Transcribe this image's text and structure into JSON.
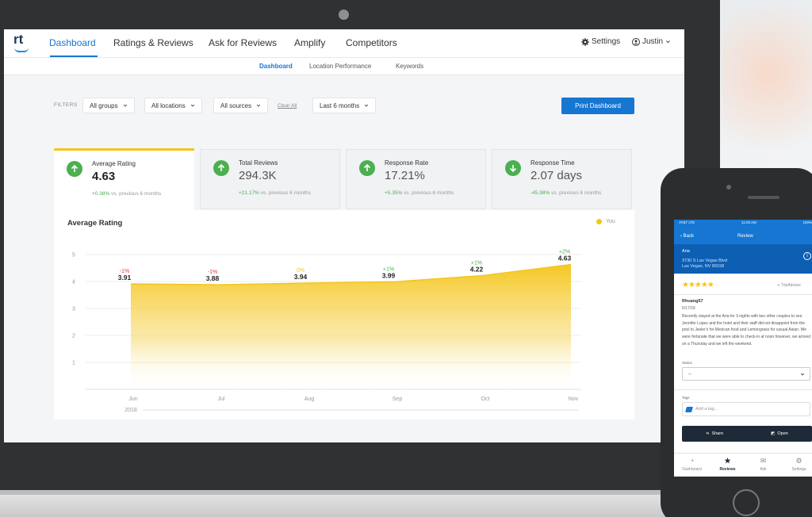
{
  "colors": {
    "accent": "#1676d2",
    "positive": "#4caf50",
    "highlight": "#f5c518",
    "negative": "#e53935"
  },
  "nav": {
    "logo": "rt",
    "items": [
      "Dashboard",
      "Ratings & Reviews",
      "Ask for Reviews",
      "Amplify",
      "Competitors"
    ],
    "settings": "Settings",
    "user": "Justin"
  },
  "subnav": {
    "items": [
      "Dashboard",
      "Location Performance",
      "Keywords"
    ]
  },
  "filters": {
    "label": "FILTERS",
    "groups": "All groups",
    "locations": "All locations",
    "sources": "All sources",
    "clear": "Clear All",
    "period": "Last 6 months",
    "print": "Print Dashboard"
  },
  "metrics": [
    {
      "label": "Average Rating",
      "value": "4.63",
      "change": "+0.38%",
      "suffix": "vs. previous 6 months",
      "direction": "up"
    },
    {
      "label": "Total Reviews",
      "value": "294.3K",
      "change": "+21.17%",
      "suffix": "vs. previous 6 months",
      "direction": "up"
    },
    {
      "label": "Response Rate",
      "value": "17.21%",
      "change": "+5.35%",
      "suffix": "vs. previous 6 months",
      "direction": "up"
    },
    {
      "label": "Response Time",
      "value": "2.07 days",
      "change": "-45.98%",
      "suffix": "vs. previous 6 months",
      "direction": "down"
    }
  ],
  "chart_panel": {
    "title": "Average Rating",
    "legend": "You"
  },
  "chart_data": {
    "type": "area",
    "title": "Average Rating",
    "x": [
      "Jun",
      "Jul",
      "Aug",
      "Sep",
      "Oct",
      "Nov"
    ],
    "x_sub": "2018",
    "series": [
      {
        "name": "You",
        "values": [
          3.91,
          3.88,
          3.94,
          3.99,
          4.22,
          4.63
        ]
      }
    ],
    "changes": [
      "-1%",
      "-1%",
      "0%",
      "+1%",
      "+1%",
      "+2%"
    ],
    "change_colors": [
      "#e53935",
      "#e53935",
      "#f5c518",
      "#4caf50",
      "#4caf50",
      "#4caf50"
    ],
    "ylim": [
      0,
      5
    ],
    "yticks": [
      1,
      2,
      3,
      4,
      5
    ],
    "grid": true,
    "legend": "top-right"
  },
  "phone": {
    "status": {
      "carrier": "AT&T  LTE",
      "time": "11:03 AM",
      "battery": "100%"
    },
    "header": {
      "back": "Back",
      "title": "Review"
    },
    "location": {
      "name": "Aria",
      "address1": "3730 S Las Vegas Blvd",
      "address2": "Las Vegas, NV 89158"
    },
    "stars": "★★★★★",
    "source": "TripAdvisor",
    "review": {
      "author": "Rhuang57",
      "date": "5/17/18",
      "body": "Recently stayed at the Aria for 3 nights with two other couples to see Jennifer Lopez and the hotel and their staff did not disappoint from the pool to Javier's for Mexican food and Lemongrass for casual Asian. We were fortunate that we were able to check-in at noon however, we arrived on a Thursday and we left the weekend."
    },
    "status_label": "Status",
    "status_value": "--",
    "tags_label": "Tags",
    "tags_placeholder": "Add a tag...",
    "share": "Share",
    "open": "Open",
    "tabs": [
      "Dashboard",
      "Reviews",
      "Ask",
      "Settings"
    ]
  }
}
